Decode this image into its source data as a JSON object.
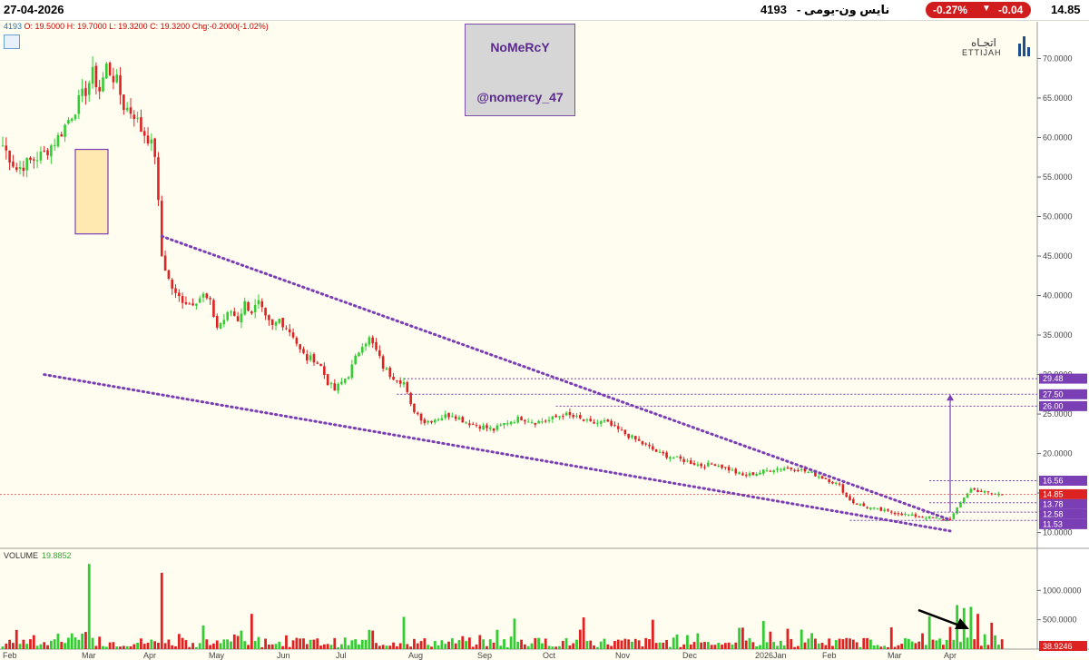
{
  "header": {
    "date": "27-04-2026",
    "symbol": "4193",
    "name": "نايس ون-يومى -",
    "change_pct": "-0.27%",
    "change_abs": "-0.04",
    "last": "14.85"
  },
  "ohlc_line": {
    "symbol": "4193",
    "text": "O: 19.5000   H: 19.7000   L: 19.3200   C: 19.3200   Chg:-0.2000(-1.02%)"
  },
  "watermark": {
    "line1": "NoMeRcY",
    "line2": "@nomercy_47"
  },
  "logo": {
    "arabic": "اتجـاه",
    "english": "ETTIJAH"
  },
  "volume_panel": {
    "label": "VOLUME",
    "value": "19.8852"
  },
  "colors": {
    "up": "#33cc33",
    "down": "#dd2222",
    "trend": "#7b3fb5",
    "label_bg": "#7b3fb5",
    "last_label_bg": "#dd2222"
  },
  "chart_data": {
    "type": "candlestick",
    "price_axis": {
      "ylim": [
        8.0,
        73.5
      ],
      "ticks": [
        "10.0000",
        "15.0000",
        "20.0000",
        "25.0000",
        "30.0000",
        "35.0000",
        "40.0000",
        "45.0000",
        "50.0000",
        "55.0000",
        "60.0000",
        "65.0000",
        "70.0000"
      ]
    },
    "volume_axis": {
      "ylim": [
        0,
        1500
      ],
      "ticks": [
        "500.0000",
        "1000.0000"
      ],
      "last_label": "38.9246"
    },
    "months": [
      "Feb",
      "Mar",
      "Apr",
      "May",
      "Jun",
      "Jul",
      "Aug",
      "Sep",
      "Oct",
      "Nov",
      "Dec",
      "2026Jan",
      "Feb",
      "Mar",
      "Apr"
    ],
    "price_labels": [
      {
        "text": "29.48",
        "value": 29.48,
        "style": "level"
      },
      {
        "text": "27.50",
        "value": 27.5,
        "style": "level"
      },
      {
        "text": "26.00",
        "value": 26.0,
        "style": "level"
      },
      {
        "text": "16.56",
        "value": 16.56,
        "style": "level"
      },
      {
        "text": "14.85",
        "value": 14.85,
        "style": "last"
      },
      {
        "text": "13.78",
        "value": 13.78,
        "style": "level"
      },
      {
        "text": "12.58",
        "value": 12.58,
        "style": "level"
      },
      {
        "text": "11.53",
        "value": 11.53,
        "style": "level"
      }
    ],
    "anchors": [
      [
        0,
        59
      ],
      [
        4,
        56
      ],
      [
        8,
        57
      ],
      [
        12,
        58
      ],
      [
        16,
        60
      ],
      [
        20,
        63
      ],
      [
        24,
        66
      ],
      [
        26,
        68
      ],
      [
        28,
        66
      ],
      [
        30,
        69
      ],
      [
        33,
        67
      ],
      [
        35,
        64
      ],
      [
        38,
        63
      ],
      [
        40,
        61
      ],
      [
        42,
        60
      ],
      [
        44,
        58
      ],
      [
        46,
        45
      ],
      [
        48,
        42
      ],
      [
        50,
        40
      ],
      [
        54,
        39
      ],
      [
        58,
        40
      ],
      [
        60,
        39
      ],
      [
        62,
        36
      ],
      [
        64,
        37
      ],
      [
        66,
        38
      ],
      [
        68,
        37
      ],
      [
        70,
        39
      ],
      [
        72,
        38
      ],
      [
        74,
        39
      ],
      [
        76,
        37
      ],
      [
        78,
        36
      ],
      [
        80,
        37
      ],
      [
        82,
        36
      ],
      [
        84,
        35
      ],
      [
        86,
        33
      ],
      [
        88,
        32
      ],
      [
        90,
        32
      ],
      [
        92,
        31
      ],
      [
        94,
        29
      ],
      [
        96,
        28
      ],
      [
        98,
        29
      ],
      [
        100,
        30
      ],
      [
        102,
        32
      ],
      [
        104,
        34
      ],
      [
        106,
        34.5
      ],
      [
        108,
        33
      ],
      [
        110,
        31
      ],
      [
        112,
        30
      ],
      [
        114,
        29.5
      ],
      [
        116,
        29
      ],
      [
        118,
        26
      ],
      [
        120,
        25
      ],
      [
        122,
        24
      ],
      [
        126,
        24.5
      ],
      [
        130,
        25
      ],
      [
        134,
        24
      ],
      [
        138,
        23.5
      ],
      [
        142,
        23
      ],
      [
        146,
        24
      ],
      [
        150,
        24.5
      ],
      [
        154,
        24
      ],
      [
        158,
        24.2
      ],
      [
        162,
        25
      ],
      [
        166,
        24.5
      ],
      [
        170,
        23.8
      ],
      [
        174,
        24
      ],
      [
        178,
        23
      ],
      [
        182,
        22
      ],
      [
        186,
        21
      ],
      [
        190,
        20
      ],
      [
        194,
        19.5
      ],
      [
        198,
        19
      ],
      [
        202,
        18.5
      ],
      [
        206,
        18.7
      ],
      [
        210,
        18
      ],
      [
        214,
        17.2
      ],
      [
        218,
        17.5
      ],
      [
        222,
        18
      ],
      [
        226,
        18.2
      ],
      [
        230,
        18
      ],
      [
        234,
        17.5
      ],
      [
        238,
        16.8
      ],
      [
        242,
        16
      ],
      [
        244,
        14.5
      ],
      [
        246,
        13.8
      ],
      [
        248,
        13.5
      ],
      [
        250,
        13.2
      ],
      [
        254,
        12.8
      ],
      [
        258,
        12.5
      ],
      [
        262,
        12.2
      ],
      [
        266,
        12
      ],
      [
        270,
        11.8
      ],
      [
        272,
        11.6
      ],
      [
        274,
        11.7
      ],
      [
        276,
        13
      ],
      [
        278,
        14.5
      ],
      [
        280,
        15.5
      ],
      [
        282,
        15.3
      ],
      [
        286,
        14.9
      ],
      [
        288,
        14.85
      ]
    ],
    "spikes": [
      [
        25,
        1450
      ],
      [
        46,
        1300
      ],
      [
        72,
        600
      ],
      [
        116,
        550
      ],
      [
        148,
        520
      ],
      [
        168,
        540
      ],
      [
        188,
        500
      ],
      [
        220,
        480
      ],
      [
        268,
        560
      ],
      [
        276,
        750
      ],
      [
        278,
        700
      ],
      [
        280,
        720
      ],
      [
        282,
        600
      ],
      [
        286,
        450
      ]
    ],
    "trendlines": [
      {
        "from": [
          46,
          47.5
        ],
        "to": [
          274,
          11.6
        ]
      },
      {
        "from": [
          12,
          30.0
        ],
        "to": [
          274,
          10.2
        ]
      }
    ],
    "target_arrow": {
      "x": 274,
      "from": 12.6,
      "to": 27.5
    }
  }
}
